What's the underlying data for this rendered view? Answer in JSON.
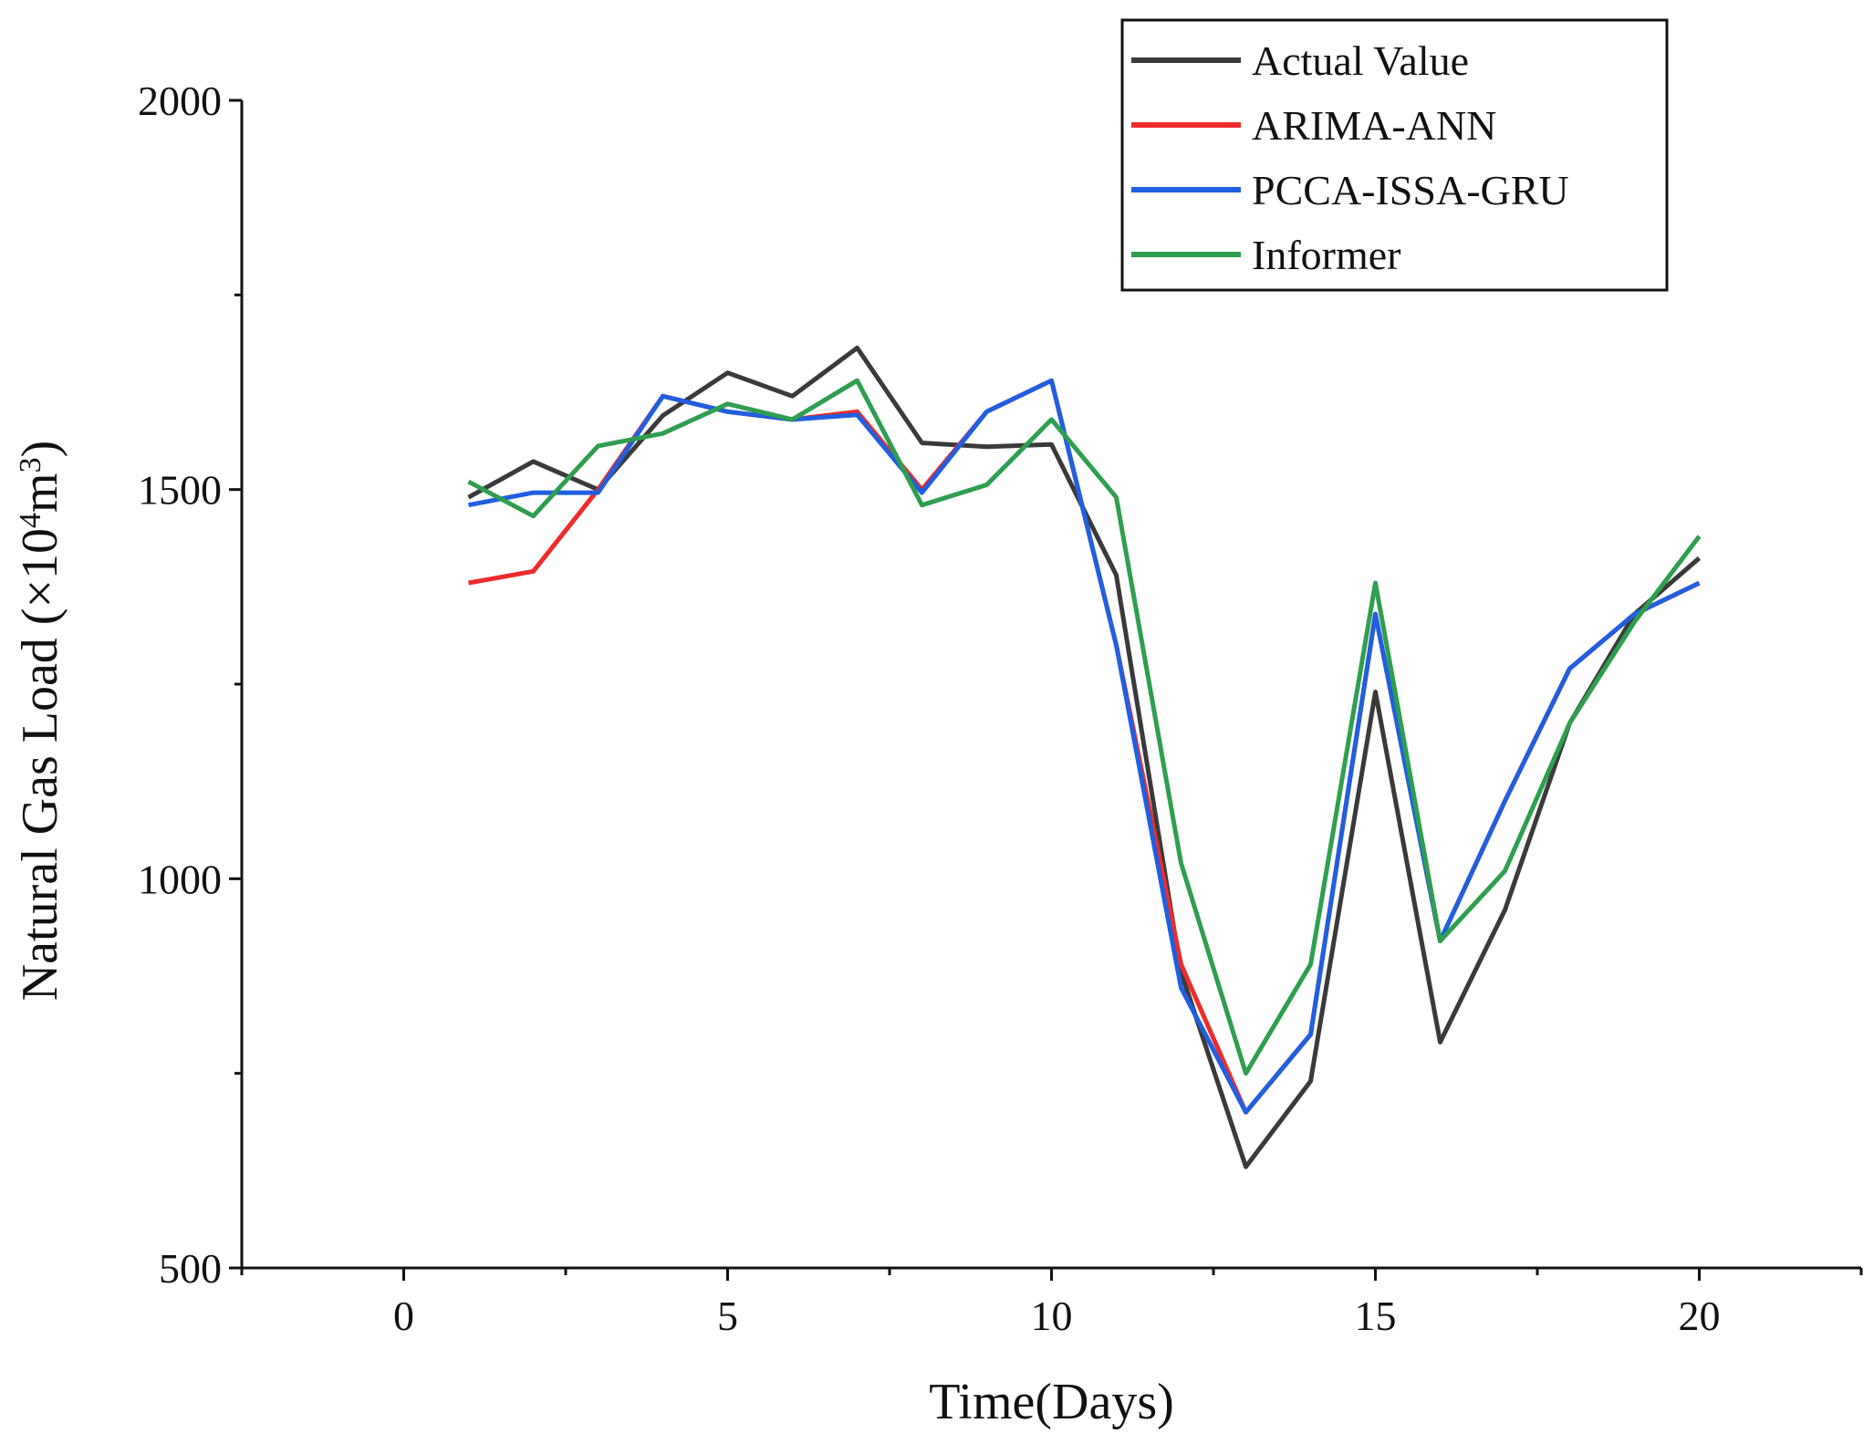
{
  "chart_data": {
    "type": "line",
    "title": "",
    "xlabel": "Time(Days)",
    "ylabel": "Natural Gas Load",
    "ylabel_unit_prefix": "(×10",
    "ylabel_unit_exp": "4",
    "ylabel_unit_m": "m",
    "ylabel_unit_m_exp": "3",
    "ylabel_unit_suffix": ")",
    "xlim": [
      -2.5,
      22.5
    ],
    "ylim": [
      500,
      2000
    ],
    "xticks": [
      0,
      5,
      10,
      15,
      20
    ],
    "yticks": [
      500,
      1000,
      1500,
      2000
    ],
    "grid": false,
    "legend_position": "top-right",
    "x": [
      1,
      2,
      3,
      4,
      5,
      6,
      7,
      8,
      9,
      10,
      11,
      12,
      13,
      14,
      15,
      16,
      17,
      18,
      19,
      20
    ],
    "series": [
      {
        "name": "Actual Value",
        "color": "#3a3a3a",
        "values": [
          1490,
          1536,
          1500,
          1595,
          1650,
          1620,
          1682,
          1560,
          1555,
          1558,
          1390,
          880,
          630,
          740,
          1240,
          790,
          960,
          1200,
          1340,
          1412
        ]
      },
      {
        "name": "ARIMA-ANN",
        "color": "#ee2b2b",
        "values": [
          1380,
          1395,
          1500,
          1620,
          1600,
          1590,
          1600,
          1500,
          1600,
          1640,
          1300,
          890,
          700,
          800,
          1340,
          920,
          1100,
          1270,
          1340,
          1380
        ]
      },
      {
        "name": "PCCA-ISSA-GRU",
        "color": "#1f5fe0",
        "values": [
          1480,
          1496,
          1496,
          1620,
          1600,
          1590,
          1596,
          1496,
          1600,
          1640,
          1300,
          860,
          700,
          800,
          1340,
          920,
          1100,
          1270,
          1340,
          1380
        ]
      },
      {
        "name": "Informer",
        "color": "#2e9e4f",
        "values": [
          1510,
          1466,
          1556,
          1572,
          1610,
          1590,
          1640,
          1480,
          1506,
          1590,
          1490,
          1020,
          750,
          890,
          1380,
          920,
          1010,
          1200,
          1330,
          1440
        ]
      }
    ]
  }
}
